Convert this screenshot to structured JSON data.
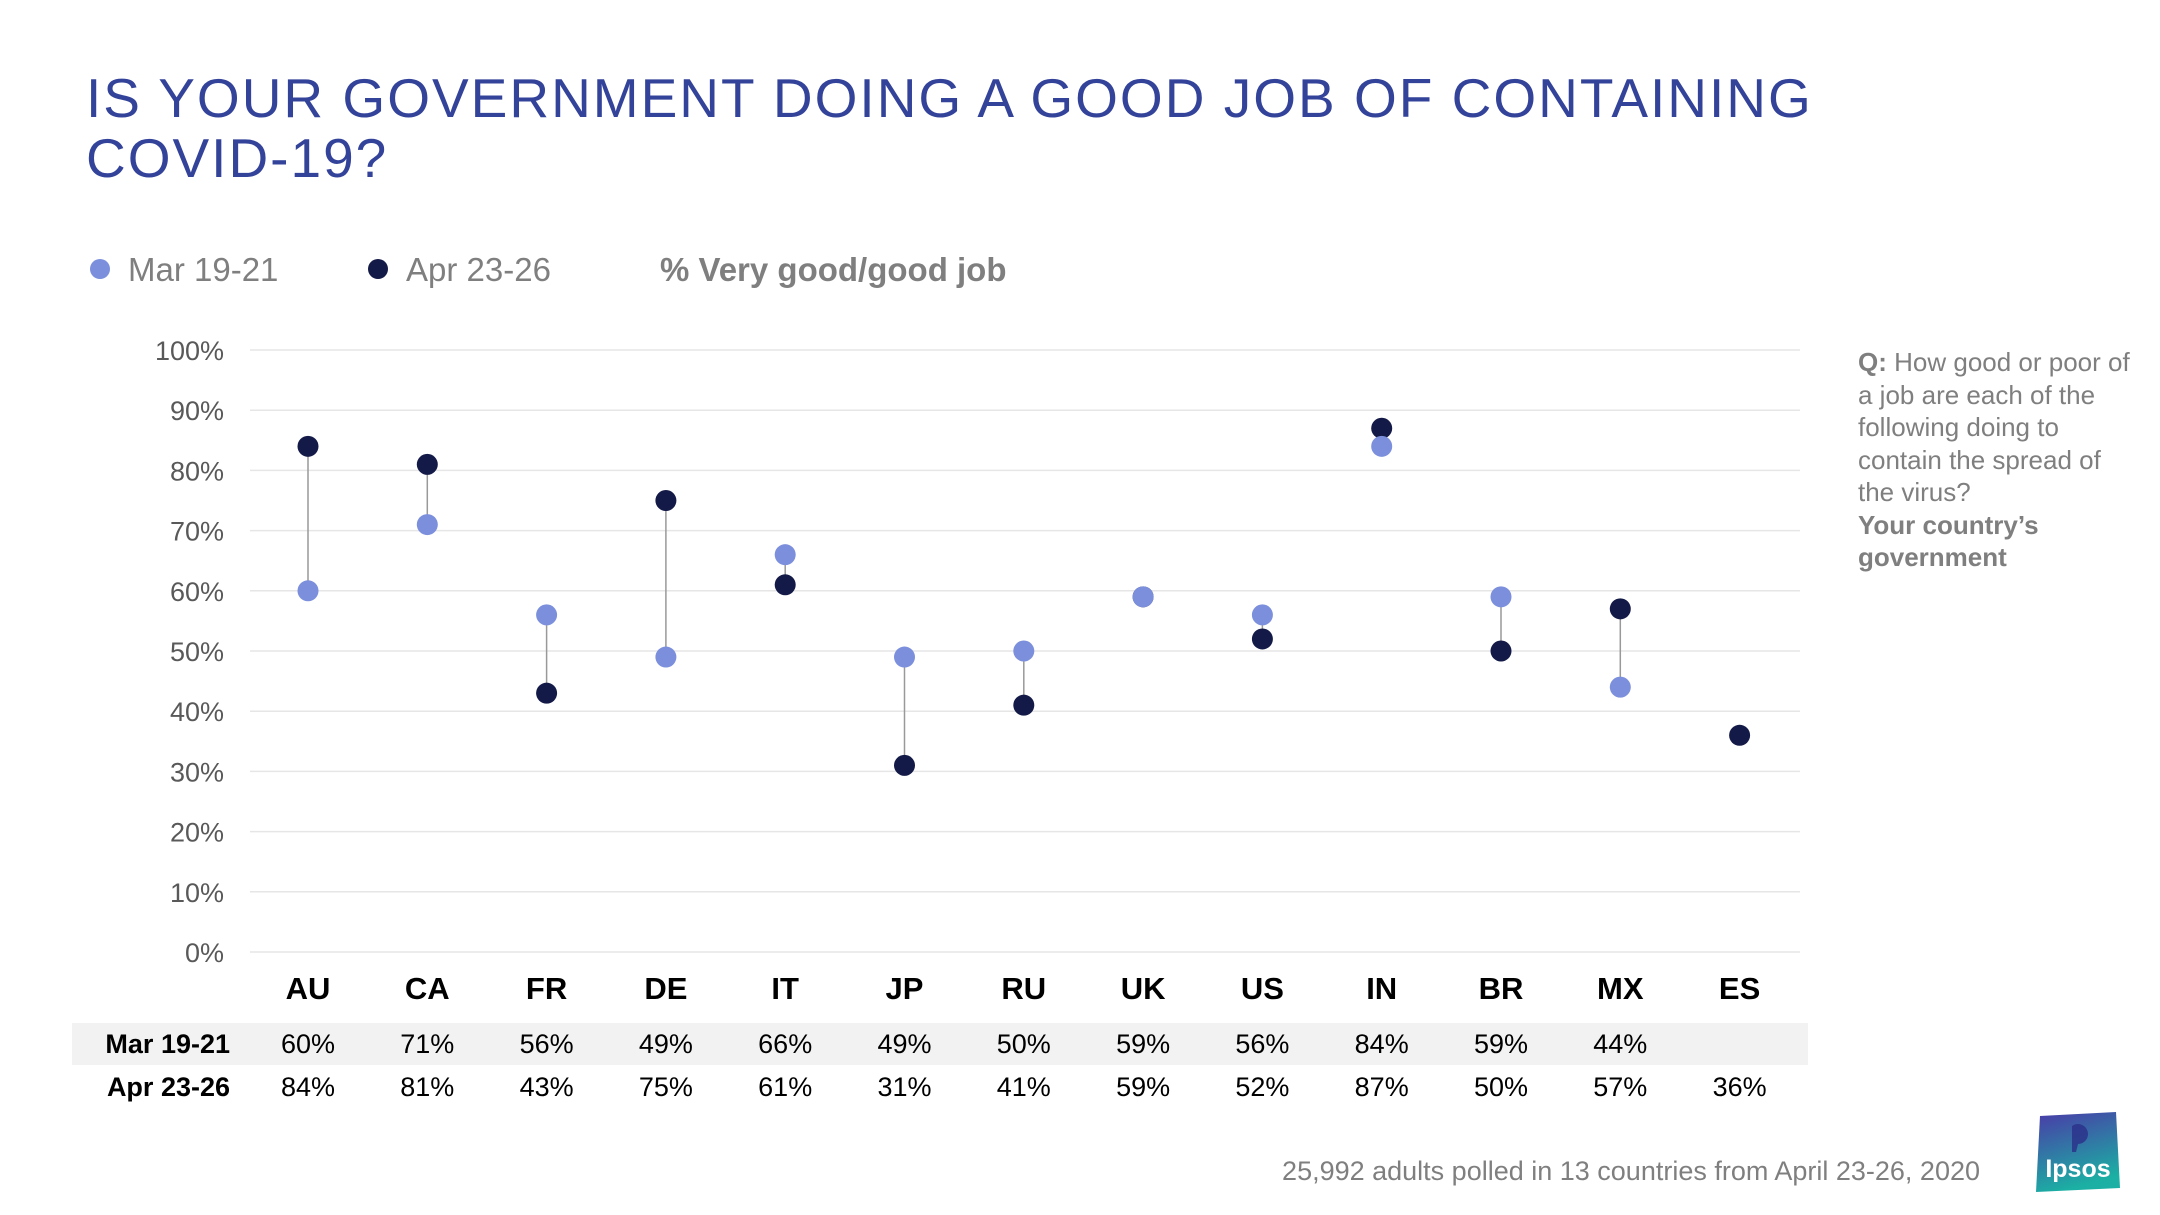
{
  "title": "IS YOUR GOVERNMENT DOING A GOOD JOB OF CONTAINING COVID-19?",
  "legend": {
    "series1": "Mar 19-21",
    "series2": "Apr 23-26",
    "metric": "% Very good/good job"
  },
  "colors": {
    "series1": "#7b8fdc",
    "series2": "#141a47",
    "title": "#34439a",
    "connector": "#999999",
    "grid": "#e6e6e6"
  },
  "question": {
    "prefix": "Q:",
    "text": "How good or poor of a job are each of the following doing to contain the spread of the virus?",
    "subject": "Your country’s government"
  },
  "chart_data": {
    "type": "dumbbell",
    "title": "IS YOUR GOVERNMENT DOING A GOOD JOB OF CONTAINING COVID-19?",
    "ylabel": "% Very good/good job",
    "ylim": [
      0,
      100
    ],
    "yticks": [
      "0%",
      "10%",
      "20%",
      "30%",
      "40%",
      "50%",
      "60%",
      "70%",
      "80%",
      "90%",
      "100%"
    ],
    "categories": [
      "AU",
      "CA",
      "FR",
      "DE",
      "IT",
      "JP",
      "RU",
      "UK",
      "US",
      "IN",
      "BR",
      "MX",
      "ES"
    ],
    "series": [
      {
        "name": "Mar 19-21",
        "values": [
          60,
          71,
          56,
          49,
          66,
          49,
          50,
          59,
          56,
          84,
          59,
          44,
          null
        ]
      },
      {
        "name": "Apr 23-26",
        "values": [
          84,
          81,
          43,
          75,
          61,
          31,
          41,
          59,
          52,
          87,
          50,
          57,
          36
        ]
      }
    ]
  },
  "table": {
    "rows": [
      {
        "label": "Mar 19-21",
        "cells": [
          "60%",
          "71%",
          "56%",
          "49%",
          "66%",
          "49%",
          "50%",
          "59%",
          "56%",
          "84%",
          "59%",
          "44%",
          ""
        ]
      },
      {
        "label": "Apr 23-26",
        "cells": [
          "84%",
          "81%",
          "43%",
          "75%",
          "61%",
          "31%",
          "41%",
          "59%",
          "52%",
          "87%",
          "50%",
          "57%",
          "36%"
        ]
      }
    ]
  },
  "footer": "25,992 adults polled in 13 countries from April 23-26, 2020",
  "logo": {
    "text": "Ipsos",
    "color_top": "#4a3aa8",
    "color_bottom": "#1bb0a3"
  }
}
